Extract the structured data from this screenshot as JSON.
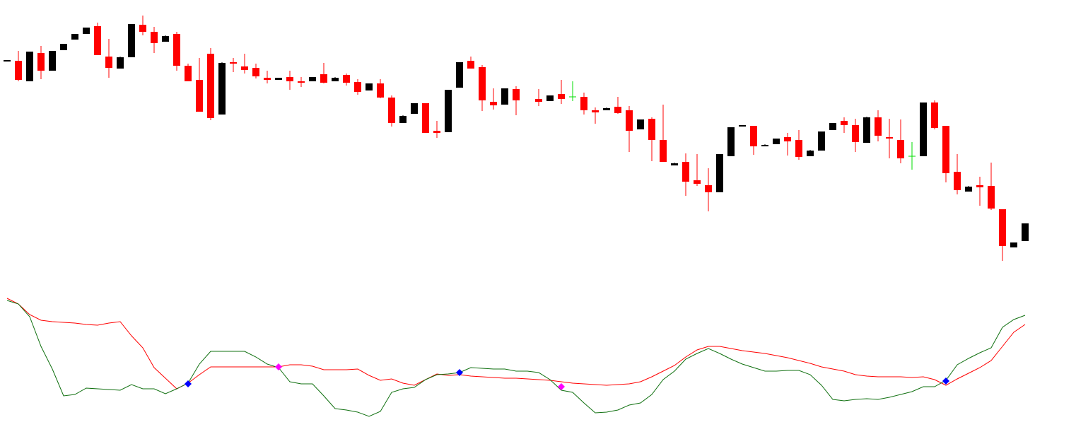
{
  "chart_data": [
    {
      "type": "candlestick",
      "ylim": [
        0,
        400
      ],
      "up_color": "#000000",
      "down_color": "#ff0000",
      "doji_color": "#00dd00",
      "open": [
        314,
        314,
        285,
        325,
        300,
        329,
        344,
        352,
        363,
        320,
        303,
        319,
        365,
        355,
        341,
        352,
        307,
        287,
        324,
        238,
        312,
        306,
        304,
        290,
        287,
        291,
        285,
        285,
        295,
        285,
        294,
        284,
        272,
        282,
        262,
        226,
        239,
        254,
        215,
        213,
        276,
        314,
        305,
        256,
        252,
        274,
        null,
        260,
        257,
        267,
        263,
        263,
        244,
        244,
        249,
        244,
        217,
        232,
        202,
        166,
        171,
        145,
        138,
        128,
        179,
        221,
        222,
        193,
        196,
        206,
        202,
        179,
        187,
        216,
        229,
        223,
        198,
        234,
        206,
        202,
        179,
        179,
        255,
        222,
        157,
        129,
        138,
        137,
        104,
        50,
        59
      ],
      "high": [
        315,
        328,
        327,
        335,
        328,
        338,
        352,
        361,
        368,
        345,
        320,
        366,
        378,
        362,
        350,
        355,
        310,
        318,
        332,
        312,
        318,
        324,
        310,
        300,
        290,
        300,
        291,
        291,
        311,
        291,
        296,
        288,
        282,
        288,
        265,
        237,
        254,
        254,
        229,
        273,
        312,
        320,
        308,
        275,
        275,
        278,
        null,
        274,
        265,
        287,
        285,
        269,
        248,
        248,
        263,
        250,
        231,
        234,
        252,
        170,
        183,
        182,
        162,
        182,
        220,
        223,
        222,
        196,
        204,
        212,
        216,
        188,
        214,
        226,
        234,
        232,
        235,
        244,
        232,
        231,
        199,
        255,
        258,
        222,
        182,
        137,
        150,
        170,
        104,
        57,
        84
      ],
      "low": [
        314,
        285,
        285,
        288,
        300,
        329,
        344,
        352,
        322,
        290,
        303,
        319,
        350,
        325,
        341,
        300,
        285,
        242,
        230,
        238,
        298,
        296,
        289,
        282,
        287,
        273,
        277,
        285,
        282,
        285,
        279,
        266,
        272,
        261,
        221,
        226,
        239,
        212,
        205,
        213,
        276,
        303,
        243,
        245,
        252,
        237,
        null,
        250,
        257,
        253,
        257,
        238,
        225,
        244,
        239,
        185,
        217,
        172,
        171,
        166,
        123,
        137,
        101,
        128,
        179,
        221,
        181,
        193,
        196,
        180,
        174,
        179,
        187,
        216,
        212,
        185,
        198,
        200,
        176,
        169,
        160,
        179,
        217,
        142,
        125,
        129,
        109,
        103,
        31,
        50,
        59
      ],
      "close": [
        315,
        287,
        327,
        300,
        328,
        338,
        352,
        361,
        322,
        304,
        319,
        366,
        355,
        339,
        349,
        307,
        285,
        242,
        233,
        311,
        310,
        301,
        292,
        287,
        290,
        285,
        283,
        291,
        283,
        290,
        283,
        270,
        282,
        262,
        226,
        236,
        254,
        212,
        212,
        273,
        312,
        303,
        258,
        251,
        275,
        258,
        null,
        256,
        265,
        260,
        263,
        244,
        241,
        247,
        240,
        215,
        231,
        202,
        171,
        169,
        143,
        140,
        128,
        182,
        220,
        223,
        193,
        195,
        204,
        200,
        178,
        187,
        214,
        226,
        223,
        199,
        234,
        208,
        204,
        176,
        179,
        255,
        219,
        155,
        131,
        136,
        135,
        105,
        52,
        57,
        84
      ]
    },
    {
      "type": "line",
      "ylim": [
        0,
        221
      ],
      "series": [
        {
          "color": "#ff0000",
          "values": [
            199,
            191,
            176,
            168,
            166,
            165,
            164,
            162,
            161,
            164,
            166,
            146,
            129,
            101,
            86,
            71,
            79,
            91,
            102,
            102,
            102,
            102,
            102,
            102,
            102,
            105,
            105,
            103,
            98,
            98,
            98,
            99,
            90,
            83,
            85,
            79,
            76,
            84,
            92,
            90,
            91,
            89,
            88,
            87,
            86,
            86,
            85,
            84,
            83,
            81,
            79,
            78,
            77,
            76,
            77,
            78,
            81,
            88,
            96,
            104,
            116,
            126,
            131,
            131,
            128,
            125,
            123,
            121,
            118,
            115,
            111,
            107,
            102,
            99,
            96,
            91,
            89,
            88,
            88,
            88,
            87,
            88,
            84,
            76,
            85,
            93,
            101,
            111,
            131,
            151,
            162
          ]
        },
        {
          "color": "#107010",
          "values": [
            196,
            191,
            173,
            131,
            99,
            61,
            63,
            72,
            71,
            70,
            69,
            77,
            71,
            71,
            64,
            71,
            79,
            106,
            124,
            124,
            124,
            124,
            116,
            106,
            101,
            81,
            78,
            78,
            61,
            43,
            41,
            38,
            32,
            39,
            66,
            71,
            73,
            84,
            91,
            92,
            94,
            101,
            100,
            99,
            99,
            96,
            96,
            94,
            84,
            69,
            66,
            51,
            37,
            38,
            41,
            48,
            51,
            63,
            84,
            96,
            113,
            121,
            128,
            121,
            113,
            106,
            101,
            96,
            96,
            97,
            97,
            91,
            76,
            56,
            54,
            56,
            57,
            56,
            59,
            63,
            67,
            74,
            74,
            83,
            105,
            114,
            122,
            129,
            158,
            169,
            175
          ]
        },
        {
          "color": "#0000ff",
          "marker": "diamond",
          "values": [
            null,
            null,
            null,
            null,
            null,
            null,
            null,
            null,
            null,
            null,
            null,
            null,
            null,
            null,
            null,
            null,
            78,
            null,
            null,
            null,
            null,
            null,
            null,
            null,
            null,
            null,
            null,
            null,
            null,
            null,
            null,
            null,
            null,
            null,
            null,
            null,
            null,
            null,
            null,
            null,
            94,
            null,
            null,
            null,
            null,
            null,
            null,
            null,
            null,
            null,
            null,
            null,
            null,
            null,
            null,
            null,
            null,
            null,
            null,
            null,
            null,
            null,
            null,
            null,
            null,
            null,
            null,
            null,
            null,
            null,
            null,
            null,
            null,
            null,
            null,
            null,
            null,
            null,
            null,
            null,
            null,
            null,
            null,
            82,
            null,
            null,
            null,
            null,
            null,
            null,
            null
          ]
        },
        {
          "color": "#ff00ff",
          "marker": "diamond",
          "values": [
            null,
            null,
            null,
            null,
            null,
            null,
            null,
            null,
            null,
            null,
            null,
            null,
            null,
            null,
            null,
            null,
            null,
            null,
            null,
            null,
            null,
            null,
            null,
            null,
            102,
            null,
            null,
            null,
            null,
            null,
            null,
            null,
            null,
            null,
            null,
            null,
            null,
            null,
            null,
            null,
            null,
            null,
            null,
            null,
            null,
            null,
            null,
            null,
            null,
            74,
            null,
            null,
            null,
            null,
            null,
            null,
            null,
            null,
            null,
            null,
            null,
            null,
            null,
            null,
            null,
            null,
            null,
            null,
            null,
            null,
            null,
            null,
            null,
            null,
            null,
            null,
            null,
            null,
            null,
            null,
            null,
            null,
            null,
            null,
            null,
            null,
            null,
            null,
            null,
            null,
            null
          ]
        }
      ]
    }
  ]
}
